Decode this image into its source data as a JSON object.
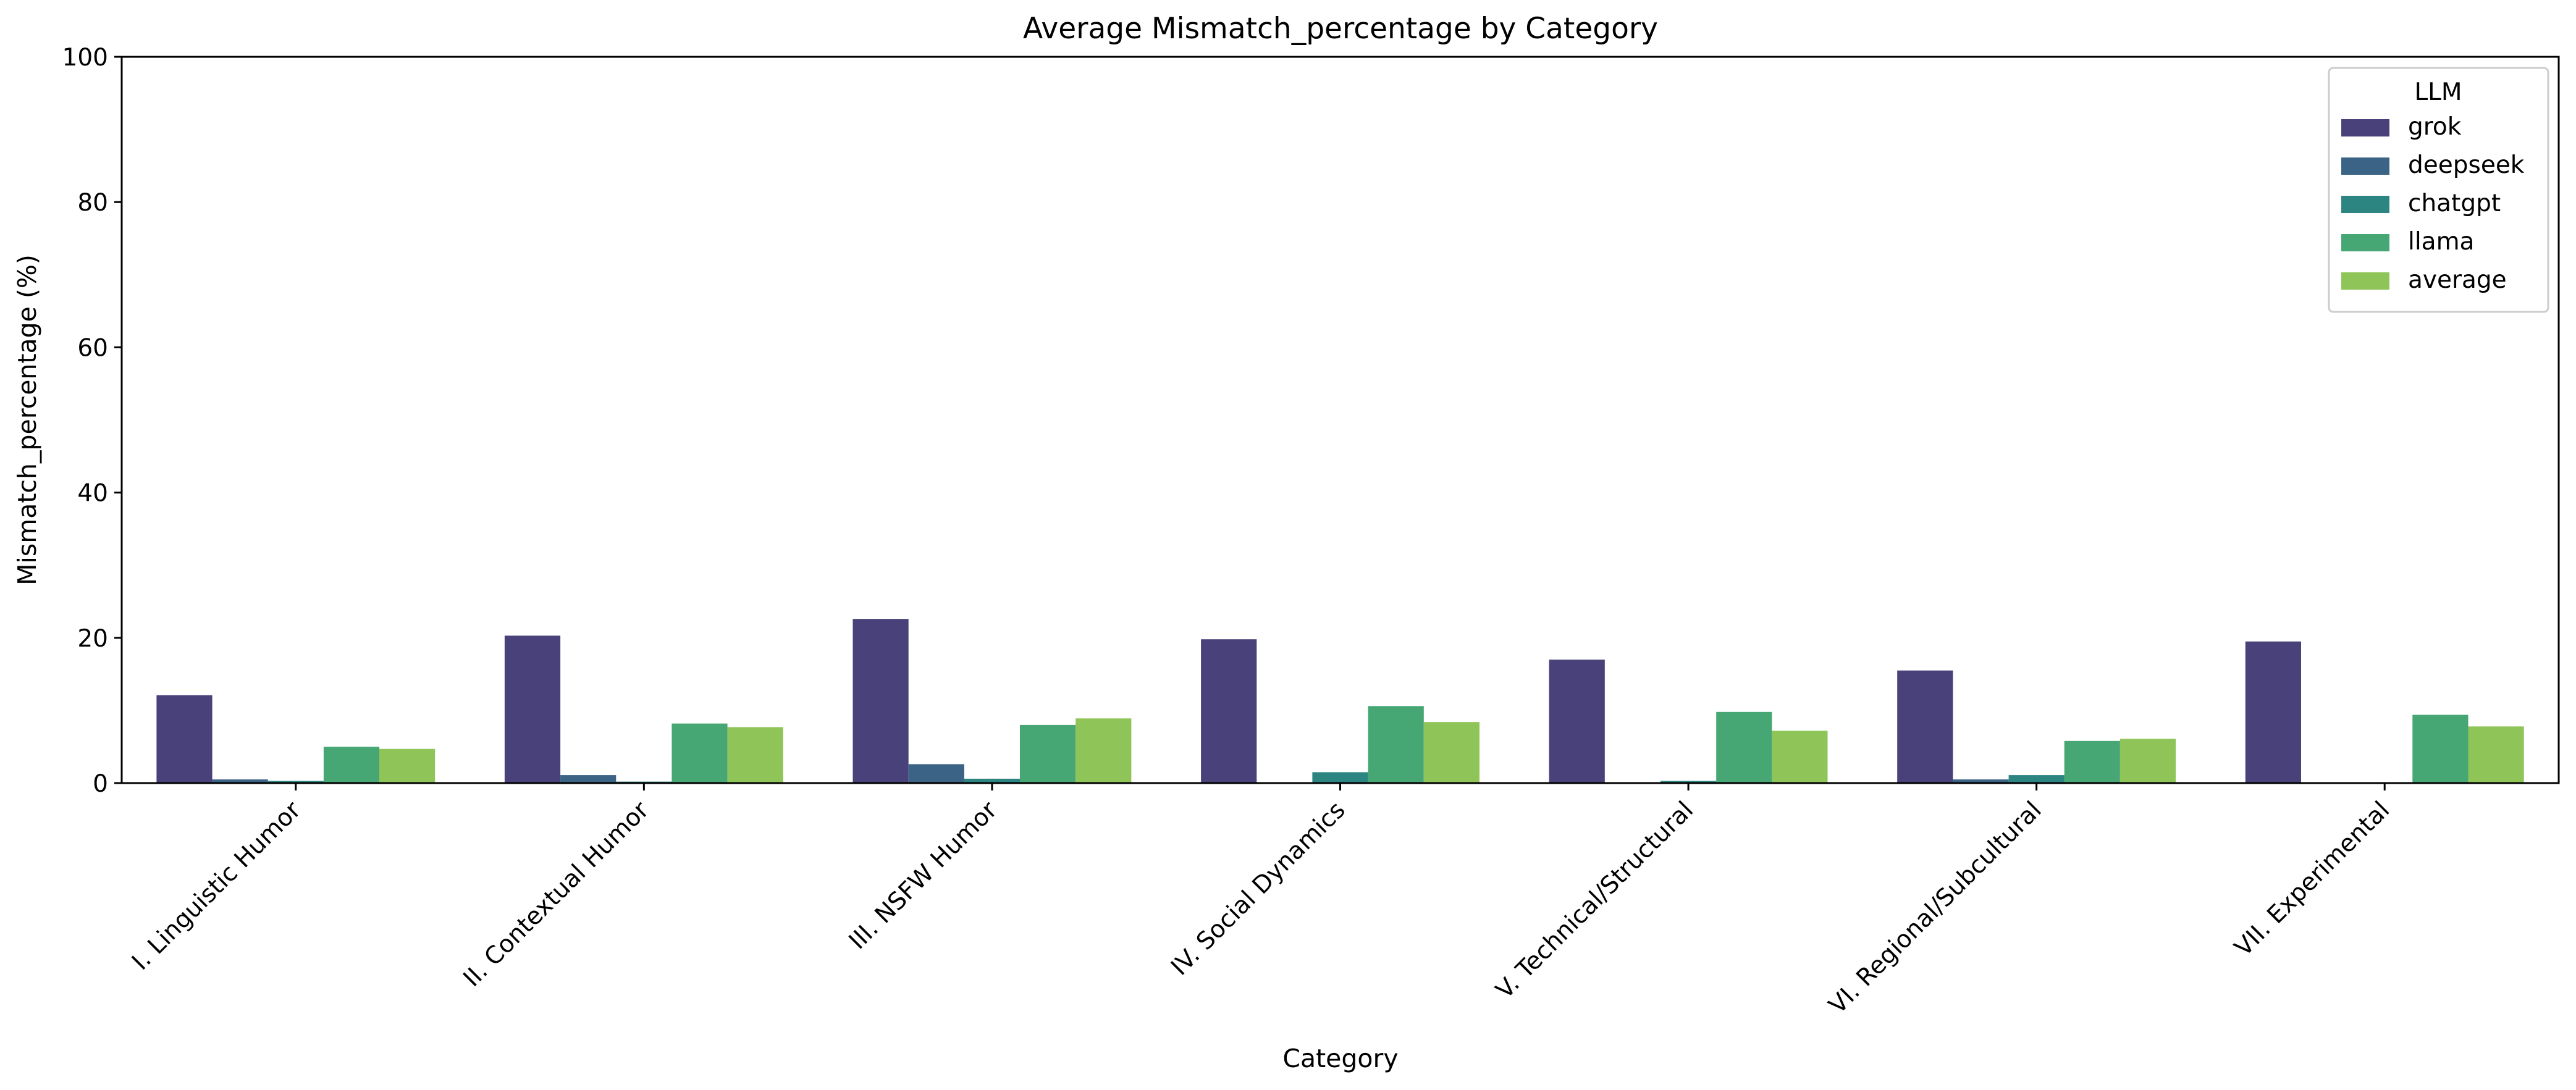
{
  "chart_data": {
    "type": "bar",
    "title": "Average Mismatch_percentage by Category",
    "xlabel": "Category",
    "ylabel": "Mismatch_percentage (%)",
    "ylim": [
      0,
      100
    ],
    "yticks": [
      0,
      20,
      40,
      60,
      80,
      100
    ],
    "grid": false,
    "legend": {
      "title": "LLM",
      "placement": "top-right"
    },
    "categories": [
      "I. Linguistic Humor",
      "II. Contextual Humor",
      "III. NSFW Humor",
      "IV. Social Dynamics",
      "V. Technical/Structural",
      "VI. Regional/Subcultural",
      "VII. Experimental"
    ],
    "series": [
      {
        "name": "grok",
        "color": "#48417a",
        "values": [
          12.1,
          20.3,
          22.6,
          19.8,
          17.0,
          15.5,
          19.5
        ]
      },
      {
        "name": "deepseek",
        "color": "#3b6386",
        "values": [
          0.5,
          1.1,
          2.6,
          0.0,
          0.0,
          0.5,
          0.0
        ]
      },
      {
        "name": "chatgpt",
        "color": "#2c8580",
        "values": [
          0.3,
          0.2,
          0.6,
          1.5,
          0.3,
          1.1,
          0.0
        ]
      },
      {
        "name": "llama",
        "color": "#46a674",
        "values": [
          5.0,
          8.2,
          8.0,
          10.6,
          9.8,
          5.8,
          9.4
        ]
      },
      {
        "name": "average",
        "color": "#8fc558",
        "values": [
          4.7,
          7.7,
          8.9,
          8.4,
          7.2,
          6.1,
          7.8
        ]
      }
    ]
  }
}
